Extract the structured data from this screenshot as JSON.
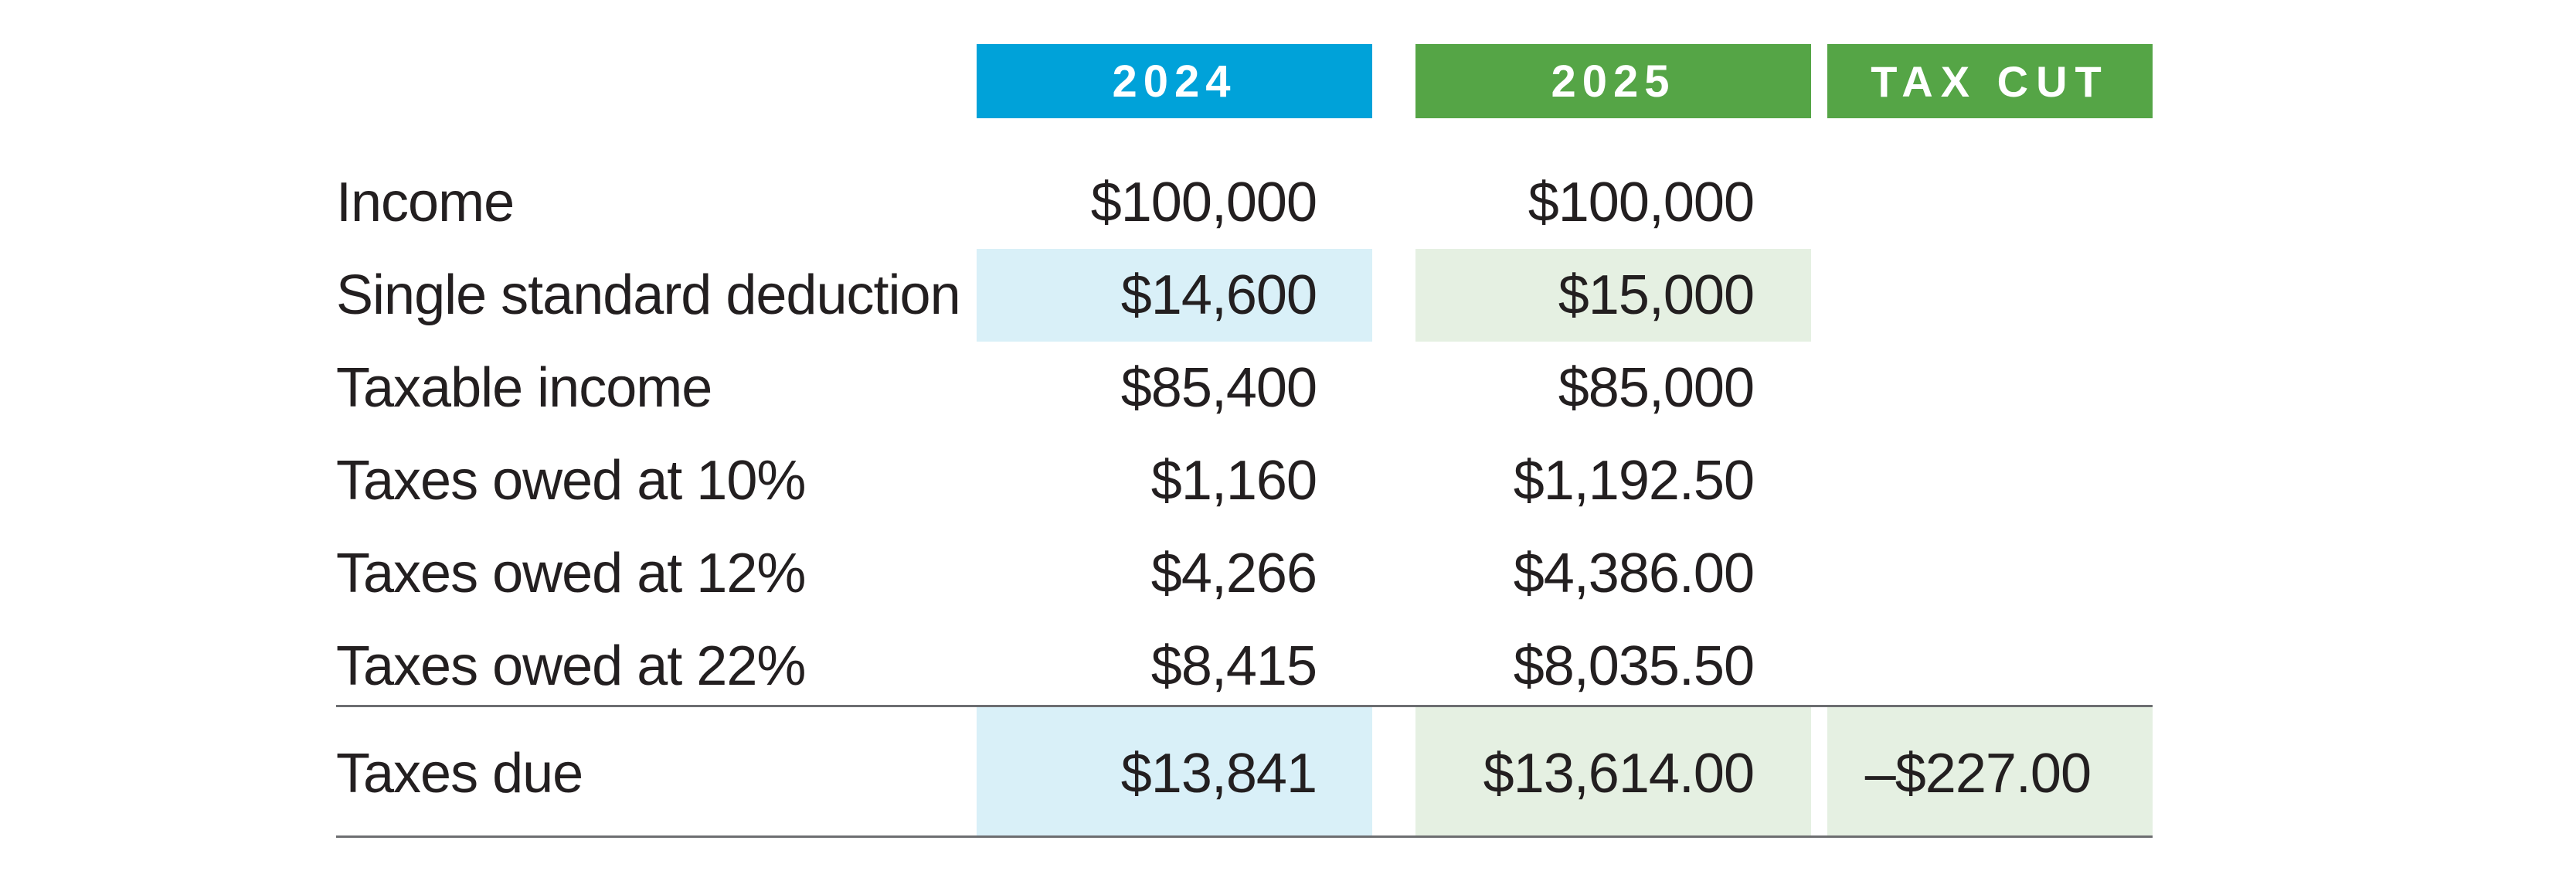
{
  "colors": {
    "blue_header": "#00A2D9",
    "green_header": "#55A546",
    "light_blue_cell": "#D9F0F8",
    "light_green_cell": "#E5F0E2",
    "rule_gray": "#6D6E71",
    "text": "#231F20"
  },
  "chart_data": {
    "type": "table",
    "title": "",
    "columns": [
      {
        "label": "2024"
      },
      {
        "label": "2025"
      },
      {
        "label": "TAX CUT"
      }
    ],
    "rows": [
      {
        "label": "Income",
        "y2024": "$100,000",
        "y2025": "$100,000",
        "taxcut": "",
        "highlighted": false
      },
      {
        "label": "Single standard deduction",
        "y2024": "$14,600",
        "y2025": "$15,000",
        "taxcut": "",
        "highlighted": true
      },
      {
        "label": "Taxable income",
        "y2024": "$85,400",
        "y2025": "$85,000",
        "taxcut": "",
        "highlighted": false
      },
      {
        "label": "Taxes owed at 10%",
        "y2024": "$1,160",
        "y2025": "$1,192.50",
        "taxcut": "",
        "highlighted": false
      },
      {
        "label": "Taxes owed at 12%",
        "y2024": "$4,266",
        "y2025": "$4,386.00",
        "taxcut": "",
        "highlighted": false
      },
      {
        "label": "Taxes owed at 22%",
        "y2024": "$8,415",
        "y2025": "$8,035.50",
        "taxcut": "",
        "highlighted": false
      }
    ],
    "total_row": {
      "label": "Taxes due",
      "y2024": "$13,841",
      "y2025": "$13,614.00",
      "taxcut": "–$227.00",
      "highlighted": true
    },
    "layout_hints": {
      "grid": "off",
      "highlight_columns_2024": "light blue",
      "highlight_columns_2025_taxcut": "light green",
      "total_row_separated_by_rules": true
    }
  }
}
